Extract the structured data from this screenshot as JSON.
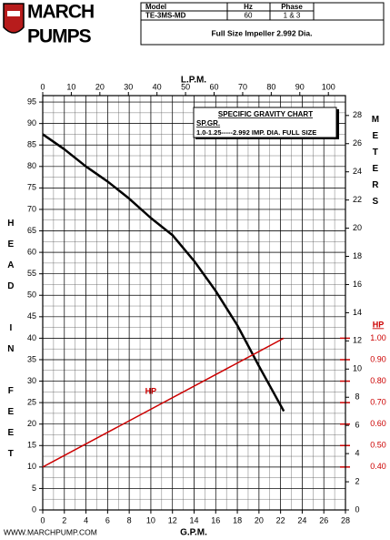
{
  "header": {
    "logo_top": "MARCH",
    "logo_bottom": "PUMPS",
    "table": {
      "columns": [
        "Model",
        "Hz",
        "Phase"
      ],
      "row": [
        "TE-3MS-MD",
        "60",
        "1 & 3"
      ],
      "note": "Full Size Impeller 2.992 Dia."
    }
  },
  "footer": "WWW.MARCHPUMP.COM",
  "chart_data": {
    "type": "line",
    "legend_box": {
      "title": "SPECIFIC GRAVITY CHART",
      "subtitle": "SP.GR.",
      "line": "1.0-1.25-----2.992 IMP. DIA. FULL SIZE"
    },
    "x_label": "G.P.M.",
    "x2_label": "L.P.M.",
    "y_label": "HEAD IN FEET",
    "y2_label": "METERS",
    "y3_label": "HP",
    "xlim": [
      0,
      28
    ],
    "xticks": [
      0,
      2,
      4,
      6,
      8,
      10,
      12,
      14,
      16,
      18,
      20,
      22,
      24,
      26,
      28
    ],
    "x2lim": [
      0,
      105.98
    ],
    "x2ticks": [
      0,
      10,
      20,
      30,
      40,
      50,
      60,
      70,
      80,
      90,
      100
    ],
    "ylim": [
      0,
      96.5
    ],
    "yticks": [
      0,
      5,
      10,
      15,
      20,
      25,
      30,
      35,
      40,
      45,
      50,
      55,
      60,
      65,
      70,
      75,
      80,
      85,
      90,
      95
    ],
    "y2lim": [
      0,
      29.41
    ],
    "y2ticks": [
      0,
      2,
      4,
      6,
      8,
      10,
      12,
      14,
      16,
      18,
      20,
      22,
      24,
      26,
      28
    ],
    "y3lim": [
      0.2,
      2.13
    ],
    "y3ticks": [
      {
        "value": 0.4,
        "label": "0.40"
      },
      {
        "value": 0.5,
        "label": "0.50"
      },
      {
        "value": 0.6,
        "label": "0.60"
      },
      {
        "value": 0.7,
        "label": "0.70"
      },
      {
        "value": 0.8,
        "label": "0.80"
      },
      {
        "value": 0.9,
        "label": "0.90"
      },
      {
        "value": 1.0,
        "label": "1.00"
      }
    ],
    "grid": true,
    "series": [
      {
        "color": "#000000",
        "x": [
          0,
          2,
          4,
          6,
          8,
          10,
          12,
          14,
          16,
          18,
          20,
          22.3
        ],
        "values": [
          87.5,
          84,
          80,
          76.5,
          72.5,
          68,
          64,
          58,
          51,
          43,
          33.5,
          23
        ]
      },
      {
        "name": "HP",
        "color": "#cc0000",
        "axis": "y3",
        "x": [
          0,
          22.3
        ],
        "values": [
          0.4,
          1.0
        ]
      }
    ]
  }
}
